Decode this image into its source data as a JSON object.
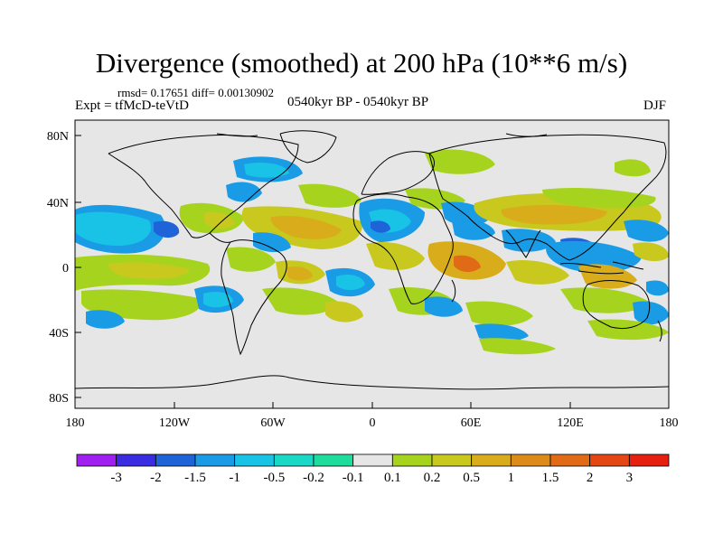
{
  "title": "Divergence (smoothed) at 200 hPa (10**6 m/s)",
  "stats_line": "rmsd= 0.17651 diff= 0.00130902",
  "experiment_label": "Expt = tfMcD-teVtD",
  "period_label": "0540kyr BP - 0540kyr BP",
  "season_label": "DJF",
  "lat_ticks": [
    "80N",
    "40N",
    "0",
    "40S",
    "80S"
  ],
  "lon_ticks": [
    "180",
    "120W",
    "60W",
    "0",
    "60E",
    "120E",
    "180"
  ],
  "colorbar": {
    "labels": [
      "-3",
      "-2",
      "-1.5",
      "-1",
      "-0.5",
      "-0.2",
      "-0.1",
      "0.1",
      "0.2",
      "0.5",
      "1",
      "1.5",
      "2",
      "3"
    ],
    "colors": [
      "#a020f0",
      "#3a2ce0",
      "#1f63d8",
      "#1a9be6",
      "#18c3e6",
      "#19d8c6",
      "#1edc9c",
      "#e6e6e6",
      "#a6d41e",
      "#c8c81e",
      "#d8ac1a",
      "#dc8a18",
      "#e06a16",
      "#e44812",
      "#e6200e"
    ]
  },
  "map": {
    "background": "#e6e6e6",
    "coastline_color": "#000000"
  }
}
